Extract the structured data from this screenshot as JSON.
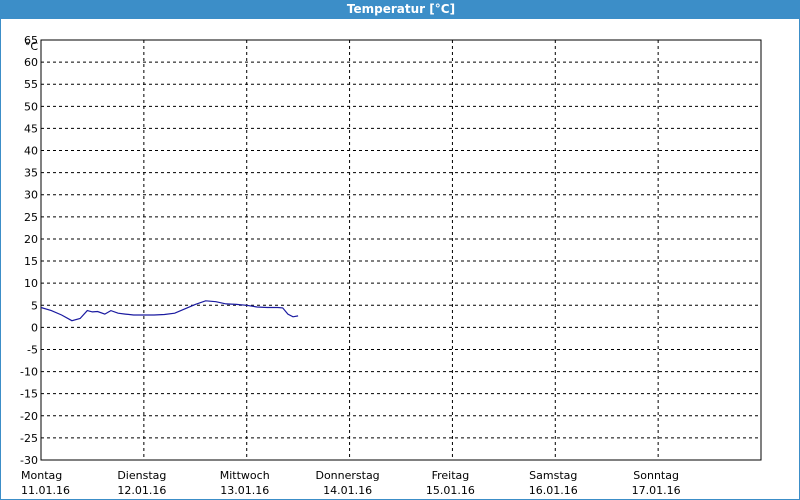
{
  "window": {
    "title": "Temperatur [°C]"
  },
  "colors": {
    "title_bar": "#3c8ec8",
    "series": "#1a1aa0",
    "grid": "#000000"
  },
  "chart_data": {
    "type": "line",
    "title": "Temperatur [°C]",
    "ylabel": "°C",
    "ylim": [
      -30,
      65
    ],
    "yticks": [
      65,
      60,
      55,
      50,
      45,
      40,
      35,
      30,
      25,
      20,
      15,
      10,
      5,
      0,
      -5,
      -10,
      -15,
      -20,
      -25,
      -30
    ],
    "xlim": [
      0,
      7
    ],
    "x_categories": [
      {
        "day": "Montag",
        "date": "11.01.16"
      },
      {
        "day": "Dienstag",
        "date": "12.01.16"
      },
      {
        "day": "Mittwoch",
        "date": "13.01.16"
      },
      {
        "day": "Donnerstag",
        "date": "14.01.16"
      },
      {
        "day": "Freitag",
        "date": "15.01.16"
      },
      {
        "day": "Samstag",
        "date": "16.01.16"
      },
      {
        "day": "Sonntag",
        "date": "17.01.16"
      }
    ],
    "grid": true,
    "series": [
      {
        "x": [
          0,
          0.1,
          0.2,
          0.3,
          0.38,
          0.45,
          0.5,
          0.55,
          0.62,
          0.68,
          0.75,
          0.82,
          0.9,
          1.0,
          1.1,
          1.2,
          1.3,
          1.4,
          1.5,
          1.6,
          1.7,
          1.8,
          1.9,
          2.0,
          2.1,
          2.2,
          2.3,
          2.35,
          2.4,
          2.45,
          2.5
        ],
        "y": [
          4.5,
          3.8,
          2.8,
          1.5,
          2.0,
          3.8,
          3.5,
          3.6,
          3.0,
          3.8,
          3.2,
          3.0,
          2.8,
          2.8,
          2.8,
          2.9,
          3.2,
          4.2,
          5.2,
          6.0,
          5.8,
          5.3,
          5.2,
          5.0,
          4.6,
          4.5,
          4.5,
          4.4,
          3.0,
          2.4,
          2.6
        ]
      }
    ]
  }
}
